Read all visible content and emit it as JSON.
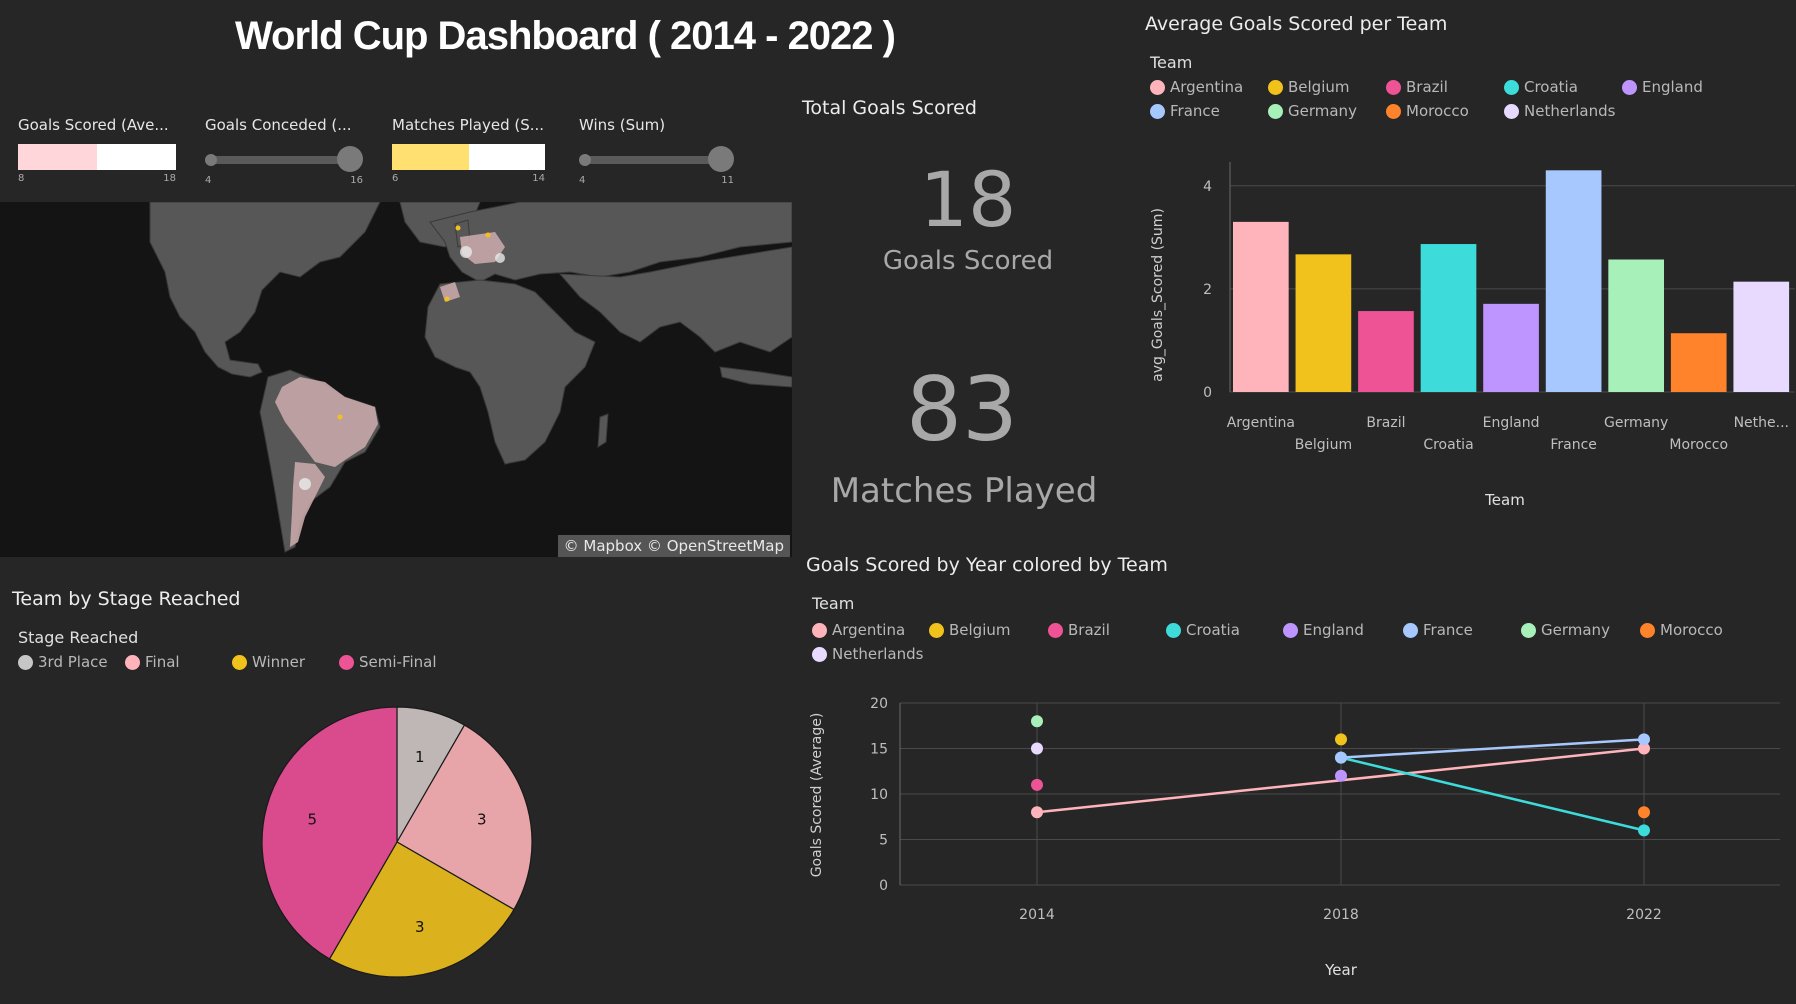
{
  "title": "World Cup Dashboard ( 2014 - 2022 )",
  "filters": [
    {
      "label": "Goals Scored (Ave...",
      "min": "8",
      "max": "18",
      "type": "bar",
      "color": "#ffd6d9",
      "fill_fraction": 0.5
    },
    {
      "label": "Goals Conceded (...",
      "min": "4",
      "max": "16",
      "type": "slider"
    },
    {
      "label": "Matches Played (S...",
      "min": "6",
      "max": "14",
      "type": "bar",
      "color": "#ffe070",
      "fill_fraction": 0.5
    },
    {
      "label": "Wins (Sum)",
      "min": "4",
      "max": "11",
      "type": "slider"
    }
  ],
  "map": {
    "attribution": "© Mapbox © OpenStreetMap"
  },
  "kpi": {
    "title": "Total Goals Scored",
    "goals_value": "18",
    "goals_label": "Goals Scored",
    "matches_value": "83",
    "matches_label": "Matches Played"
  },
  "team_colors": {
    "Argentina": "#ffb3ba",
    "Belgium": "#f1c21b",
    "Brazil": "#ee5396",
    "Croatia": "#3ddbd9",
    "England": "#be95ff",
    "France": "#a6c8ff",
    "Germany": "#a7f0ba",
    "Morocco": "#ff832b",
    "Netherlands": "#e8daff"
  },
  "teams": [
    "Argentina",
    "Belgium",
    "Brazil",
    "Croatia",
    "England",
    "France",
    "Germany",
    "Morocco",
    "Netherlands"
  ],
  "pie_panel": {
    "title": "Team by Stage Reached",
    "legend_title": "Stage Reached",
    "legend": [
      {
        "label": "3rd Place",
        "color": "#c6c6c6"
      },
      {
        "label": "Final",
        "color": "#ffb3ba"
      },
      {
        "label": "Winner",
        "color": "#f1c21b"
      },
      {
        "label": "Semi-Final",
        "color": "#ee5396"
      }
    ]
  },
  "bar_panel": {
    "title": "Average Goals Scored per Team",
    "legend_title": "Team"
  },
  "line_panel": {
    "title": "Goals Scored by Year colored by Team",
    "legend_title": "Team"
  },
  "chart_data": [
    {
      "type": "bar",
      "title": "Average Goals Scored per Team",
      "categories": [
        "Argentina",
        "Belgium",
        "Brazil",
        "Croatia",
        "England",
        "France",
        "Germany",
        "Morocco",
        "Nethe..."
      ],
      "values": [
        3.3,
        2.67,
        1.57,
        2.87,
        1.71,
        4.3,
        2.57,
        1.14,
        2.14
      ],
      "xlabel": "Team",
      "ylabel": "avg_Goals_Scored (Sum)",
      "ylim": [
        0,
        4.5
      ],
      "yticks": [
        0,
        2,
        4
      ],
      "grid": true,
      "legend_position": "top"
    },
    {
      "type": "line",
      "title": "Goals Scored by Year colored by Team",
      "xlabel": "Year",
      "ylabel": "Goals Scored (Average)",
      "x": [
        2014,
        2018,
        2022
      ],
      "ylim": [
        0,
        20
      ],
      "yticks": [
        0,
        5,
        10,
        15,
        20
      ],
      "grid": true,
      "legend_position": "top",
      "series": [
        {
          "name": "Argentina",
          "points": [
            [
              2014,
              8
            ],
            [
              2022,
              15
            ]
          ],
          "line": true
        },
        {
          "name": "Croatia",
          "points": [
            [
              2018,
              14
            ],
            [
              2022,
              6
            ]
          ],
          "line": true
        },
        {
          "name": "France",
          "points": [
            [
              2018,
              14
            ],
            [
              2022,
              16
            ]
          ],
          "line": true
        },
        {
          "name": "Germany",
          "points": [
            [
              2014,
              18
            ]
          ],
          "line": false
        },
        {
          "name": "Netherlands",
          "points": [
            [
              2014,
              15
            ]
          ],
          "line": false
        },
        {
          "name": "Brazil",
          "points": [
            [
              2014,
              11
            ]
          ],
          "line": false
        },
        {
          "name": "Belgium",
          "points": [
            [
              2018,
              16
            ]
          ],
          "line": false
        },
        {
          "name": "England",
          "points": [
            [
              2018,
              12
            ]
          ],
          "line": false
        },
        {
          "name": "Morocco",
          "points": [
            [
              2022,
              8
            ]
          ],
          "line": false
        }
      ]
    },
    {
      "type": "pie",
      "title": "Team by Stage Reached",
      "categories": [
        "3rd Place",
        "Final",
        "Winner",
        "Semi-Final"
      ],
      "values": [
        1,
        3,
        3,
        5
      ],
      "legend_position": "top"
    }
  ]
}
